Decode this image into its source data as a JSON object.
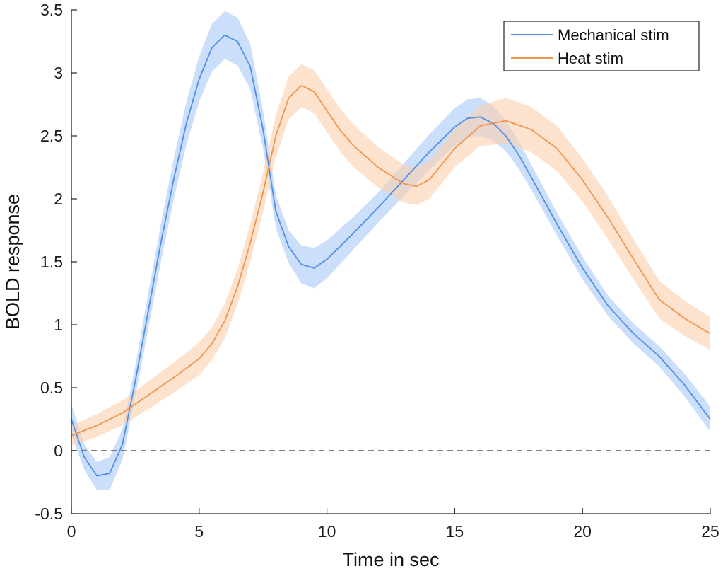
{
  "chart_data": {
    "type": "line",
    "xlabel": "Time in sec",
    "ylabel": "BOLD response",
    "xlim": [
      0,
      25
    ],
    "ylim": [
      -0.5,
      3.5
    ],
    "x_ticks": [
      "0",
      "5",
      "10",
      "15",
      "20",
      "25"
    ],
    "y_ticks": [
      "-0.5",
      "0",
      "0.5",
      "1",
      "1.5",
      "2",
      "2.5",
      "3",
      "3.5"
    ],
    "grid": false,
    "reference_line": {
      "y": 0,
      "style": "dashed",
      "color": "#555555"
    },
    "legend": {
      "position": "top-right",
      "labels": [
        "Mechanical stim",
        "Heat stim"
      ]
    },
    "series": [
      {
        "name": "Mechanical stim",
        "color": "#4f8fe6",
        "band_color": "#a8c8f7",
        "x": [
          0,
          0.5,
          1,
          1.5,
          2,
          2.5,
          3,
          3.5,
          4,
          4.5,
          5,
          5.5,
          6,
          6.5,
          7,
          7.5,
          8,
          8.5,
          9,
          9.5,
          10,
          11,
          12,
          13,
          14,
          15,
          15.5,
          16,
          16.5,
          17,
          17.5,
          18,
          19,
          20,
          21,
          22,
          23,
          24,
          25
        ],
        "y": [
          0.25,
          -0.05,
          -0.2,
          -0.18,
          0.05,
          0.55,
          1.1,
          1.65,
          2.15,
          2.6,
          2.95,
          3.2,
          3.3,
          3.25,
          3.05,
          2.55,
          1.9,
          1.62,
          1.48,
          1.45,
          1.52,
          1.72,
          1.93,
          2.15,
          2.37,
          2.57,
          2.64,
          2.65,
          2.6,
          2.5,
          2.35,
          2.17,
          1.8,
          1.45,
          1.15,
          0.93,
          0.75,
          0.52,
          0.25
        ],
        "band": [
          0.12,
          0.1,
          0.11,
          0.13,
          0.12,
          0.12,
          0.14,
          0.15,
          0.16,
          0.17,
          0.18,
          0.19,
          0.19,
          0.19,
          0.18,
          0.15,
          0.13,
          0.13,
          0.15,
          0.16,
          0.15,
          0.13,
          0.12,
          0.13,
          0.14,
          0.15,
          0.15,
          0.15,
          0.14,
          0.12,
          0.11,
          0.1,
          0.09,
          0.09,
          0.08,
          0.08,
          0.08,
          0.09,
          0.1
        ]
      },
      {
        "name": "Heat stim",
        "color": "#f0954d",
        "band_color": "#fbcfae",
        "x": [
          0,
          1,
          2,
          3,
          4,
          5,
          5.5,
          6,
          6.5,
          7,
          7.5,
          8,
          8.5,
          9,
          9.5,
          10,
          10.5,
          11,
          12,
          13,
          13.5,
          14,
          15,
          16,
          17,
          18,
          19,
          20,
          21,
          22,
          23,
          24,
          25
        ],
        "y": [
          0.12,
          0.2,
          0.3,
          0.44,
          0.58,
          0.73,
          0.85,
          1.03,
          1.3,
          1.65,
          2.05,
          2.5,
          2.8,
          2.9,
          2.85,
          2.7,
          2.55,
          2.43,
          2.25,
          2.12,
          2.1,
          2.15,
          2.4,
          2.58,
          2.62,
          2.55,
          2.4,
          2.15,
          1.85,
          1.52,
          1.2,
          1.05,
          0.93
        ],
        "band": [
          0.08,
          0.09,
          0.1,
          0.11,
          0.12,
          0.13,
          0.13,
          0.14,
          0.14,
          0.15,
          0.16,
          0.17,
          0.17,
          0.17,
          0.17,
          0.17,
          0.17,
          0.17,
          0.16,
          0.15,
          0.15,
          0.15,
          0.15,
          0.16,
          0.18,
          0.18,
          0.18,
          0.17,
          0.17,
          0.16,
          0.15,
          0.14,
          0.13
        ]
      }
    ]
  }
}
